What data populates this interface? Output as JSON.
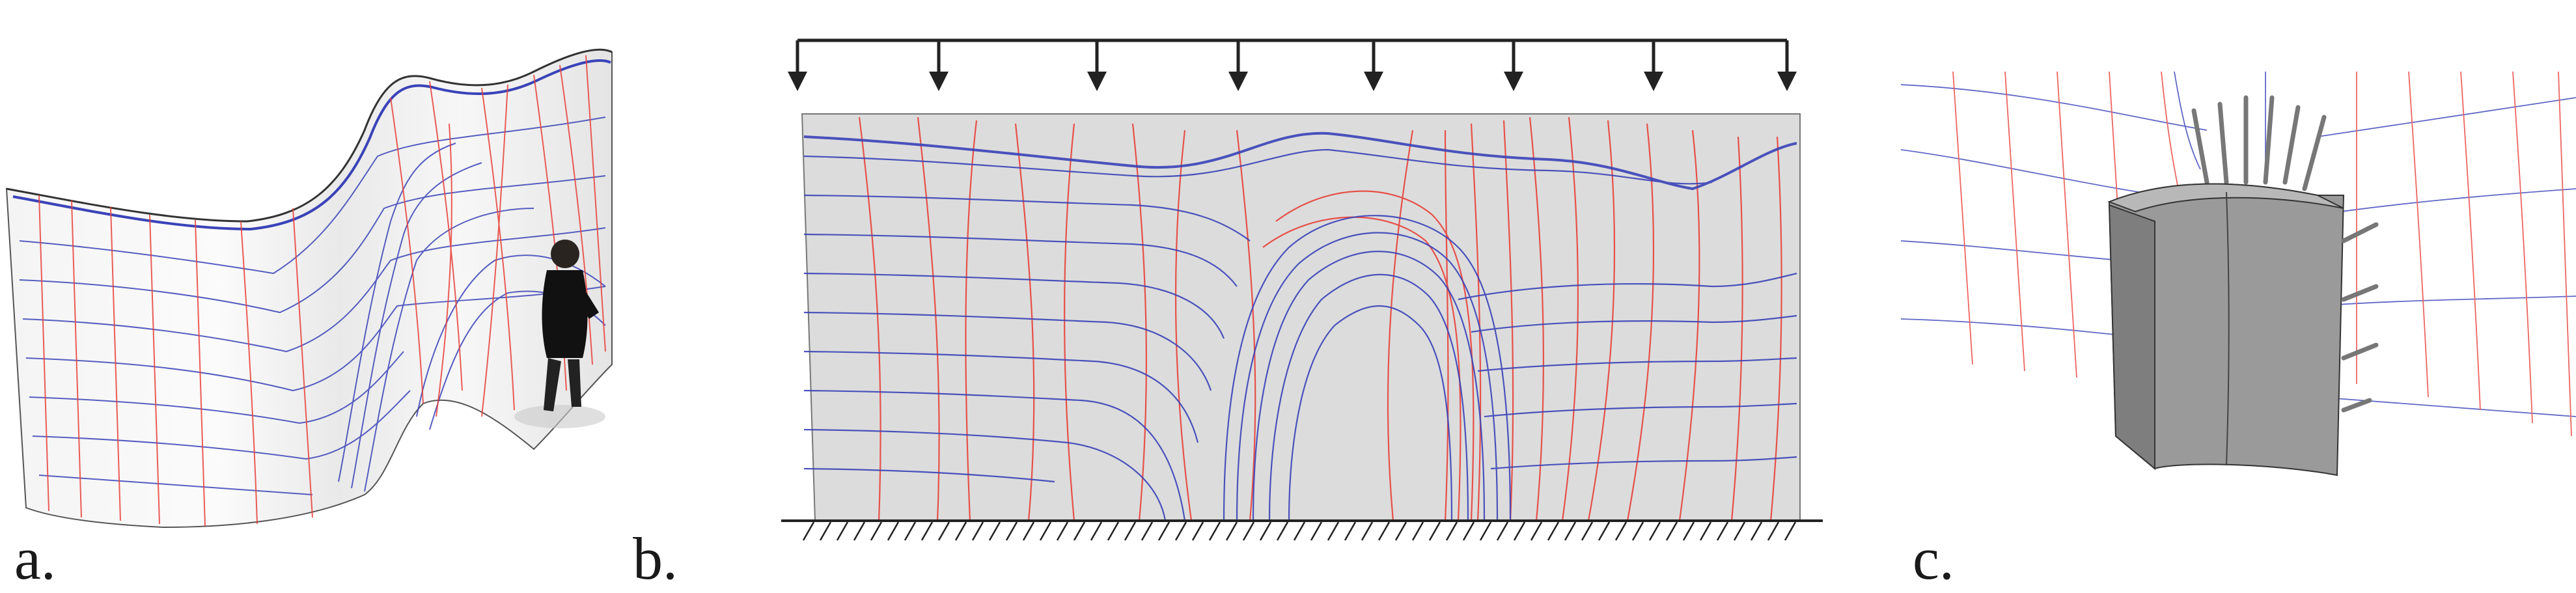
{
  "figure": {
    "panels": [
      {
        "id": "a",
        "label": "a."
      },
      {
        "id": "b",
        "label": "b."
      },
      {
        "id": "c",
        "label": "c."
      }
    ]
  },
  "colors": {
    "compression_lines": "#3a43b8",
    "tension_lines": "#e8413a",
    "surface": "#dcdcdc",
    "wall_body": "#8c8c8c",
    "support": "#222222"
  },
  "icons": [
    "load-arrow-icon",
    "fixed-support-icon",
    "person-figure-icon",
    "anchor-block-icon"
  ]
}
